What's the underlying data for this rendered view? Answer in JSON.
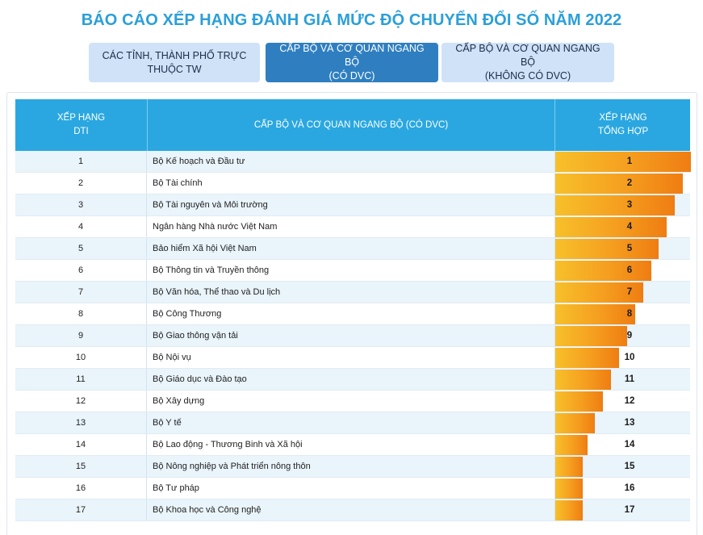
{
  "page": {
    "title": "BÁO CÁO XẾP HẠNG ĐÁNH GIÁ MỨC ĐỘ CHUYỂN ĐỔI SỐ NĂM 2022"
  },
  "tabs": [
    {
      "label": "CÁC TỈNH, THÀNH PHỐ TRỰC\nTHUỘC TW",
      "active": false
    },
    {
      "label": "CẤP BỘ VÀ CƠ QUAN NGANG BỘ\n(CÓ DVC)",
      "active": true
    },
    {
      "label": "CẤP BỘ VÀ CƠ QUAN NGANG BỘ\n(KHÔNG CÓ DVC)",
      "active": false
    }
  ],
  "table": {
    "headers": {
      "rank": "XẾP HẠNG\nDTI",
      "name": "CẤP BỘ VÀ CƠ QUAN NGANG BỘ (CÓ DVC)",
      "total": "XẾP HẠNG\nTỔNG HỢP"
    },
    "max_total_rank": 17,
    "rows": [
      {
        "rank": "1",
        "name": "Bộ Kế hoạch và Đầu tư",
        "total": "1"
      },
      {
        "rank": "2",
        "name": "Bộ Tài chính",
        "total": "2"
      },
      {
        "rank": "3",
        "name": "Bộ Tài nguyên và Môi trường",
        "total": "3"
      },
      {
        "rank": "4",
        "name": "Ngân hàng Nhà nước Việt Nam",
        "total": "4"
      },
      {
        "rank": "5",
        "name": "Bảo hiểm Xã hội Việt Nam",
        "total": "5"
      },
      {
        "rank": "6",
        "name": "Bộ Thông tin và Truyền thông",
        "total": "6"
      },
      {
        "rank": "7",
        "name": "Bộ Văn hóa, Thể thao và Du lịch",
        "total": "7"
      },
      {
        "rank": "8",
        "name": "Bộ Công Thương",
        "total": "8"
      },
      {
        "rank": "9",
        "name": "Bộ Giao thông vận tải",
        "total": "9"
      },
      {
        "rank": "10",
        "name": "Bộ Nội vụ",
        "total": "10"
      },
      {
        "rank": "11",
        "name": "Bộ Giáo dục và Đào tạo",
        "total": "11"
      },
      {
        "rank": "12",
        "name": "Bộ Xây dựng",
        "total": "12"
      },
      {
        "rank": "13",
        "name": "Bộ Y tế",
        "total": "13"
      },
      {
        "rank": "14",
        "name": "Bộ Lao động - Thương Binh và Xã hội",
        "total": "14"
      },
      {
        "rank": "15",
        "name": "Bộ Nông nghiệp và Phát triển nông thôn",
        "total": "15"
      },
      {
        "rank": "16",
        "name": "Bộ Tư pháp",
        "total": "16"
      },
      {
        "rank": "17",
        "name": "Bộ Khoa học và Công nghệ",
        "total": "17"
      }
    ]
  },
  "colors": {
    "title": "#2b9fd9",
    "header_bg": "#2aa7e0",
    "tab_active": "#2f7fc0",
    "tab_inactive": "#cfe2f7",
    "bar_start": "#f7c02a",
    "bar_end": "#ef7d12"
  }
}
